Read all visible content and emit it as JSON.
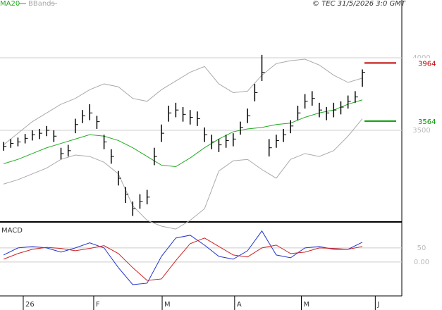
{
  "copyright": "© TEC 31/5/2026 3:0 GMT",
  "chart_data": [
    {
      "type": "ohlc",
      "xlim": [
        -0.5,
        55.5
      ],
      "ylim": [
        2869,
        4398
      ],
      "yticks": [
        3500,
        4000
      ],
      "grid": true,
      "high": [
        3420,
        3440,
        3450,
        3475,
        3500,
        3510,
        3530,
        3500,
        3380,
        3400,
        3580,
        3640,
        3680,
        3600,
        3470,
        3370,
        3220,
        3110,
        3010,
        3060,
        3090,
        3380,
        3540,
        3670,
        3690,
        3660,
        3640,
        3630,
        3520,
        3470,
        3440,
        3470,
        3480,
        3560,
        3650,
        3820,
        4020,
        3440,
        3470,
        3510,
        3570,
        3670,
        3750,
        3770,
        3690,
        3660,
        3690,
        3700,
        3740,
        3770,
        3920
      ],
      "low": [
        3360,
        3380,
        3390,
        3410,
        3430,
        3440,
        3460,
        3420,
        3300,
        3320,
        3480,
        3550,
        3570,
        3510,
        3370,
        3270,
        3120,
        3000,
        2910,
        2960,
        2990,
        3260,
        3420,
        3560,
        3590,
        3560,
        3540,
        3530,
        3420,
        3370,
        3350,
        3380,
        3390,
        3470,
        3550,
        3700,
        3840,
        3320,
        3380,
        3420,
        3480,
        3570,
        3650,
        3670,
        3590,
        3570,
        3590,
        3610,
        3650,
        3690,
        3800
      ],
      "close": [
        3390,
        3410,
        3420,
        3445,
        3470,
        3480,
        3500,
        3460,
        3340,
        3360,
        3540,
        3600,
        3620,
        3560,
        3420,
        3320,
        3170,
        3060,
        2960,
        3010,
        3040,
        3320,
        3480,
        3620,
        3640,
        3610,
        3590,
        3580,
        3470,
        3420,
        3400,
        3430,
        3440,
        3520,
        3600,
        3760,
        3900,
        3380,
        3430,
        3470,
        3530,
        3620,
        3700,
        3720,
        3640,
        3620,
        3640,
        3660,
        3700,
        3730,
        3900
      ],
      "bar_color": "#000000",
      "series": [
        {
          "name": "MA20",
          "color": "#22aa22",
          "x": [
            0,
            2,
            4,
            6,
            8,
            10,
            12,
            14,
            16,
            18,
            20,
            22,
            24,
            26,
            28,
            30,
            32,
            34,
            36,
            38,
            40,
            42,
            44,
            46,
            48,
            50
          ],
          "values": [
            3270,
            3300,
            3340,
            3380,
            3410,
            3440,
            3470,
            3460,
            3430,
            3380,
            3320,
            3260,
            3250,
            3310,
            3380,
            3440,
            3490,
            3510,
            3520,
            3540,
            3550,
            3590,
            3620,
            3640,
            3680,
            3710
          ]
        },
        {
          "name": "BBands",
          "color": "#aaaaaa",
          "x": [
            0,
            2,
            4,
            6,
            8,
            10,
            12,
            14,
            16,
            18,
            20,
            22,
            24,
            26,
            28,
            30,
            32,
            34,
            36,
            38,
            40,
            42,
            44,
            46,
            48,
            50
          ],
          "upper": [
            3400,
            3480,
            3560,
            3620,
            3680,
            3720,
            3780,
            3820,
            3800,
            3720,
            3700,
            3780,
            3840,
            3900,
            3940,
            3820,
            3760,
            3770,
            3880,
            3960,
            3980,
            3990,
            3950,
            3880,
            3830,
            3860
          ],
          "lower": [
            3130,
            3160,
            3200,
            3240,
            3300,
            3330,
            3320,
            3280,
            3200,
            2980,
            2880,
            2840,
            2820,
            2880,
            2960,
            3220,
            3290,
            3300,
            3230,
            3170,
            3300,
            3340,
            3320,
            3360,
            3460,
            3580
          ]
        }
      ],
      "levels": [
        {
          "value": 3964,
          "color": "#c00000"
        },
        {
          "value": 3564,
          "color": "#009900"
        }
      ]
    },
    {
      "type": "line",
      "title": "MACD",
      "xlim": [
        -0.5,
        55.5
      ],
      "ylim": [
        -120,
        142
      ],
      "yticks": [
        50,
        {
          "value": 0,
          "label": "0.00"
        }
      ],
      "grid": true,
      "xticks": [
        {
          "value": 2.74,
          "label": "26"
        },
        {
          "value": 12.56,
          "label": "F"
        },
        {
          "value": 22.1,
          "label": "M"
        },
        {
          "value": 32.2,
          "label": "A"
        },
        {
          "value": 41.5,
          "label": "M"
        },
        {
          "value": 51.8,
          "label": "J"
        }
      ],
      "series": [
        {
          "color": "#2233cc",
          "x": [
            0,
            2,
            4,
            6,
            8,
            10,
            12,
            14,
            16,
            18,
            20,
            22,
            24,
            26,
            28,
            30,
            32,
            34,
            36,
            38,
            40,
            42,
            44,
            46,
            48,
            50
          ],
          "values": [
            25,
            50,
            55,
            50,
            35,
            50,
            68,
            50,
            -20,
            -80,
            -75,
            20,
            85,
            95,
            60,
            20,
            10,
            40,
            110,
            25,
            15,
            50,
            55,
            45,
            45,
            70
          ]
        },
        {
          "color": "#cc2222",
          "x": [
            0,
            2,
            4,
            6,
            8,
            10,
            12,
            14,
            16,
            18,
            20,
            22,
            24,
            26,
            28,
            30,
            32,
            34,
            36,
            38,
            40,
            42,
            44,
            46,
            48,
            50
          ],
          "values": [
            10,
            30,
            45,
            52,
            48,
            40,
            48,
            58,
            30,
            -20,
            -65,
            -60,
            5,
            65,
            85,
            55,
            25,
            18,
            50,
            60,
            30,
            35,
            50,
            48,
            45,
            55
          ]
        }
      ]
    }
  ]
}
